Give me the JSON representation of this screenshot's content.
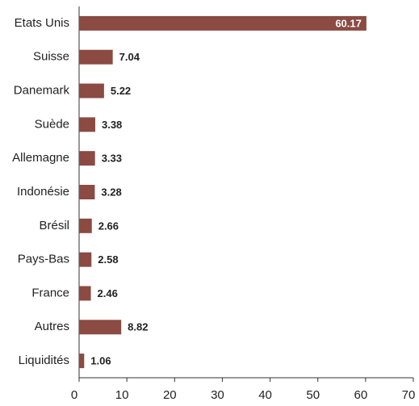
{
  "chart_data": {
    "type": "bar",
    "orientation": "horizontal",
    "categories": [
      "Etats Unis",
      "Suisse",
      "Danemark",
      "Suède",
      "Allemagne",
      "Indonésie",
      "Brésil",
      "Pays-Bas",
      "France",
      "Autres",
      "Liquidités"
    ],
    "values": [
      60.17,
      7.04,
      5.22,
      3.38,
      3.33,
      3.28,
      2.66,
      2.58,
      2.46,
      8.82,
      1.06
    ],
    "color": "#8b4a42",
    "xlim": [
      0,
      70
    ],
    "xticks": [
      0,
      10,
      20,
      30,
      40,
      50,
      60,
      70
    ]
  }
}
